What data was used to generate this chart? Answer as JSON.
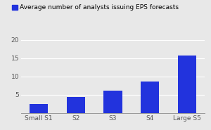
{
  "categories": [
    "Small S1",
    "S2",
    "S3",
    "S4",
    "Large S5"
  ],
  "values": [
    2.4,
    4.4,
    6.2,
    8.6,
    15.7
  ],
  "bar_color": "#2233dd",
  "legend_label": "Average number of analysts issuing EPS forecasts",
  "ylim": [
    0,
    22
  ],
  "yticks": [
    0,
    5,
    10,
    15,
    20
  ],
  "background_color": "#e8e8e8",
  "plot_bg_color": "#e8e8e8",
  "grid_color": "#ffffff",
  "bar_width": 0.5,
  "legend_marker_color": "#2233dd",
  "legend_fontsize": 6.5,
  "tick_fontsize": 6.5,
  "axis_label_color": "#555555"
}
